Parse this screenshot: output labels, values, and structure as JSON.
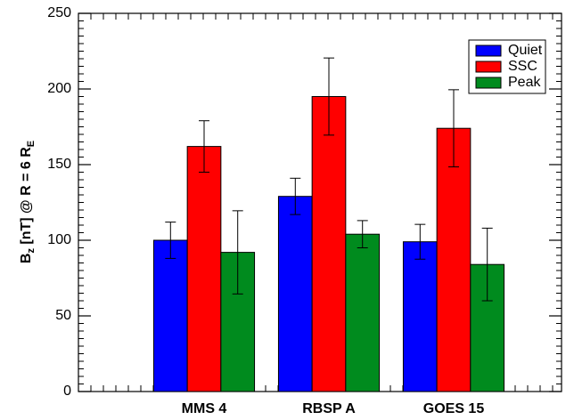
{
  "chart_data": {
    "type": "bar",
    "y_label": [
      "B",
      "z",
      " [nT] @ R = 6 R",
      "E"
    ],
    "categories": [
      "MMS 4",
      "RBSP A",
      "GOES 15"
    ],
    "series": [
      {
        "name": "Quiet",
        "color": "#0000ff",
        "values": [
          100,
          129,
          99
        ],
        "errors": [
          12,
          12,
          11.5
        ]
      },
      {
        "name": "SSC",
        "color": "#ff0000",
        "values": [
          162,
          195,
          174
        ],
        "errors": [
          17,
          25.5,
          25.5
        ]
      },
      {
        "name": "Peak",
        "color": "#008b1e",
        "values": [
          92,
          104,
          84
        ],
        "errors": [
          27.5,
          9,
          24
        ]
      }
    ],
    "ylim": [
      0,
      250
    ],
    "yticks": [
      0,
      50,
      100,
      150,
      200,
      250
    ],
    "legend": "upper right"
  }
}
